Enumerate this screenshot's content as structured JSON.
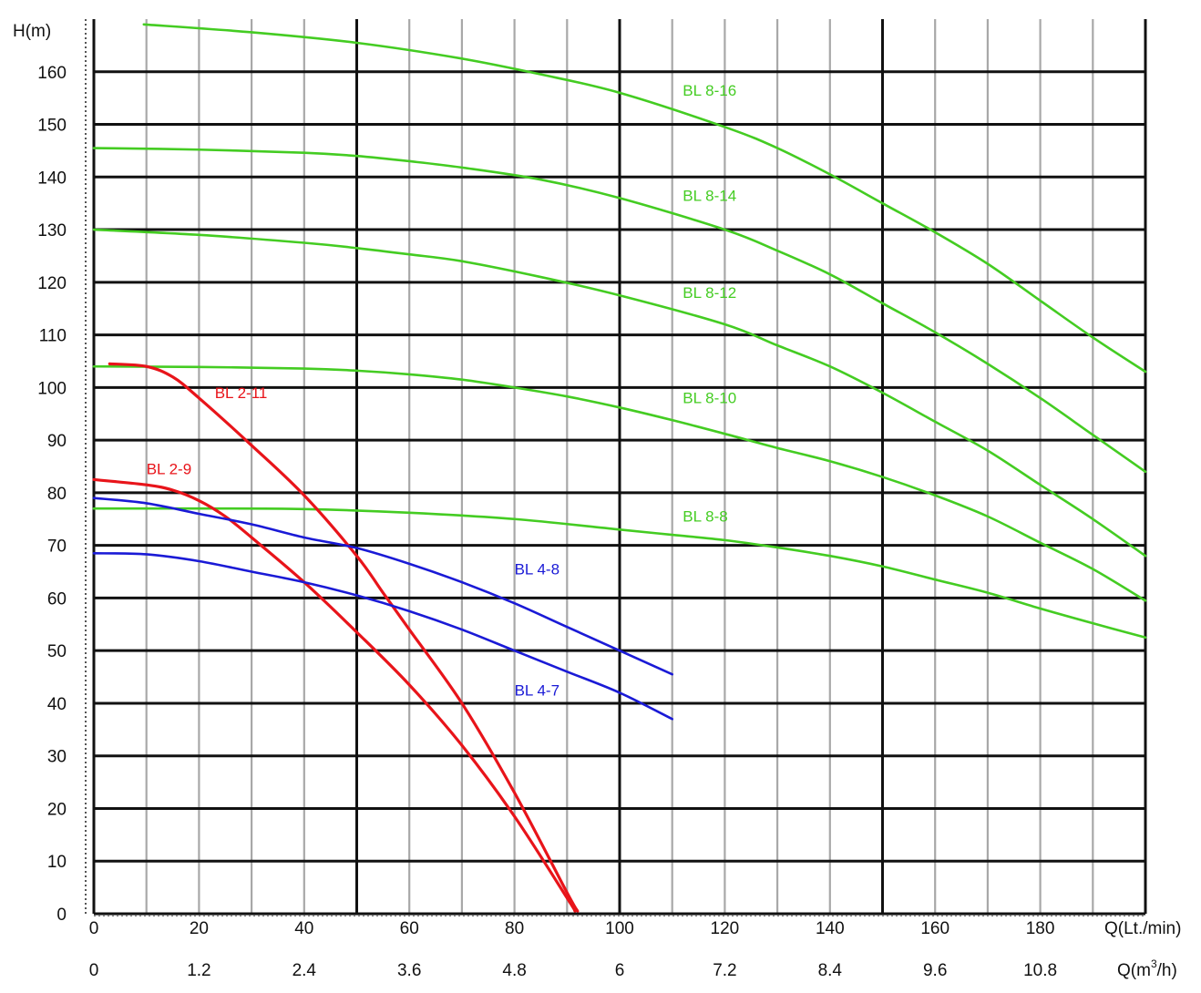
{
  "chart_data": {
    "type": "line",
    "title": "",
    "ylabel": "H(m)",
    "xlabel": "Q(Lt./min)",
    "xlabel_secondary": "Q(m³/h)",
    "xlabel_secondary_base": "Q(m",
    "xlabel_secondary_sup": "3",
    "xlabel_secondary_tail": "/h)",
    "xlim": [
      0,
      200
    ],
    "ylim": [
      0,
      170
    ],
    "x_ticks": [
      0,
      20,
      40,
      60,
      80,
      100,
      120,
      140,
      160,
      180
    ],
    "x_ticks_secondary": [
      "0",
      "1.2",
      "2.4",
      "3.6",
      "4.8",
      "6",
      "7.2",
      "8.4",
      "9.6",
      "10.8"
    ],
    "y_ticks": [
      0,
      10,
      20,
      30,
      40,
      50,
      60,
      70,
      80,
      90,
      100,
      110,
      120,
      130,
      140,
      150,
      160
    ],
    "grid": true,
    "colors": {
      "green": "#44cc22",
      "red": "#e8141a",
      "blue": "#1a1ad6"
    },
    "series": [
      {
        "name": "BL 8-16",
        "color": "green",
        "label_at": [
          112,
          155.5
        ],
        "x": [
          9.5,
          30,
          50,
          70,
          85,
          100,
          120,
          130,
          140,
          150,
          160,
          170,
          180,
          190,
          200
        ],
        "y": [
          169,
          167.5,
          165.5,
          162.5,
          159.5,
          156,
          149.5,
          145.5,
          140.5,
          135,
          129.5,
          123.5,
          116.5,
          109.5,
          103
        ]
      },
      {
        "name": "BL 8-14",
        "color": "green",
        "label_at": [
          112,
          135.5
        ],
        "x": [
          0,
          20,
          40,
          50,
          60,
          70,
          85,
          100,
          120,
          130,
          140,
          150,
          160,
          170,
          180,
          190,
          200
        ],
        "y": [
          145.5,
          145.2,
          144.6,
          144,
          143,
          141.8,
          139.5,
          136,
          130,
          126,
          121.5,
          116,
          110.5,
          104.5,
          98,
          91,
          84
        ]
      },
      {
        "name": "BL 8-12",
        "color": "green",
        "label_at": [
          112,
          117
        ],
        "x": [
          0,
          20,
          40,
          50,
          60,
          70,
          85,
          100,
          120,
          130,
          140,
          150,
          160,
          170,
          180,
          190,
          200
        ],
        "y": [
          130,
          129,
          127.5,
          126.5,
          125.3,
          124,
          121,
          117.5,
          112,
          108,
          104,
          99,
          93.5,
          88,
          81.5,
          75,
          68
        ]
      },
      {
        "name": "BL 8-10",
        "color": "green",
        "label_at": [
          112,
          97
        ],
        "x": [
          0,
          20,
          40,
          50,
          60,
          70,
          80,
          90,
          100,
          110,
          120,
          130,
          140,
          150,
          160,
          170,
          180,
          190,
          200
        ],
        "y": [
          104,
          103.9,
          103.6,
          103.2,
          102.5,
          101.5,
          100,
          98.3,
          96.2,
          93.8,
          91.2,
          88.5,
          86,
          83,
          79.5,
          75.5,
          70.5,
          65.5,
          59.5
        ]
      },
      {
        "name": "BL 8-8",
        "color": "green",
        "label_at": [
          112,
          74.5
        ],
        "x": [
          0,
          20,
          40,
          60,
          80,
          100,
          110,
          120,
          130,
          140,
          150,
          160,
          170,
          180,
          190,
          200
        ],
        "y": [
          77,
          77,
          76.9,
          76.2,
          75,
          73,
          72,
          71,
          69.6,
          68,
          66,
          63.5,
          61,
          58,
          55.2,
          52.5
        ]
      },
      {
        "name": "BL 2-11",
        "color": "red",
        "label_at": [
          23,
          98
        ],
        "x": [
          3,
          10,
          15,
          20,
          30,
          40,
          50,
          55,
          60,
          70,
          80,
          90,
          92
        ],
        "y": [
          104.5,
          104,
          102,
          98,
          89,
          79.5,
          68,
          61,
          54,
          40,
          23,
          4,
          0.5
        ]
      },
      {
        "name": "BL 2-9",
        "color": "red",
        "label_at": [
          10,
          83.5
        ],
        "x": [
          0,
          10,
          15,
          20,
          25,
          30,
          40,
          50,
          60,
          70,
          80,
          90,
          91.5
        ],
        "y": [
          82.5,
          81.5,
          80.5,
          78.5,
          75.5,
          71.5,
          63,
          53.5,
          43.5,
          32,
          18.5,
          3,
          0.5
        ]
      },
      {
        "name": "BL 4-8",
        "color": "blue",
        "label_at": [
          80,
          64.5
        ],
        "x": [
          0,
          10,
          20,
          30,
          40,
          50,
          60,
          70,
          80,
          90,
          100,
          110
        ],
        "y": [
          79,
          78,
          76,
          74,
          71.5,
          69.5,
          66.5,
          63,
          59,
          54.5,
          50,
          45.5
        ]
      },
      {
        "name": "BL 4-7",
        "color": "blue",
        "label_at": [
          80,
          41.5
        ],
        "x": [
          0,
          10,
          20,
          30,
          40,
          50,
          60,
          70,
          80,
          90,
          100,
          110
        ],
        "y": [
          68.5,
          68.3,
          67,
          65,
          63,
          60.5,
          57.5,
          54,
          50,
          46,
          42,
          37
        ]
      }
    ]
  }
}
